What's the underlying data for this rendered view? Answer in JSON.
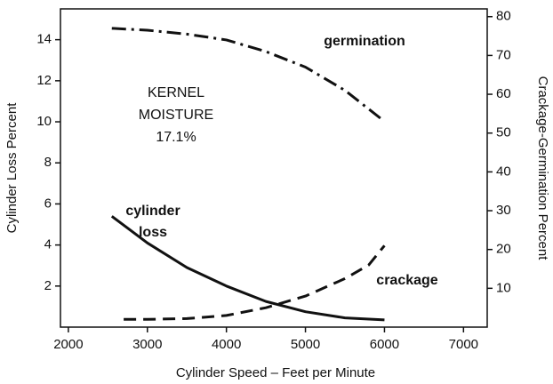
{
  "chart_data": {
    "type": "line",
    "xlabel": "Cylinder Speed  –  Feet per Minute",
    "ylabel": "Cylinder Loss Percent",
    "y2label": "Crackage-Germination Percent",
    "xlim": [
      1900,
      7300
    ],
    "xticks": [
      2000,
      3000,
      4000,
      5000,
      6000,
      7000
    ],
    "ylim": [
      0,
      15.5
    ],
    "yticks": [
      2,
      4,
      6,
      8,
      10,
      12,
      14
    ],
    "y2lim": [
      0,
      82
    ],
    "y2ticks": [
      10,
      20,
      30,
      40,
      50,
      60,
      70,
      80
    ],
    "grid": false,
    "series": [
      {
        "name": "cylinder loss",
        "color": "#111111",
        "style": "solid",
        "axis": "y",
        "x": [
          2550,
          3000,
          3500,
          4000,
          4500,
          5000,
          5500,
          6000
        ],
        "values": [
          5.4,
          4.1,
          2.9,
          2.0,
          1.25,
          0.75,
          0.45,
          0.35
        ]
      },
      {
        "name": "crackage",
        "color": "#111111",
        "style": "dashed",
        "axis": "y2",
        "x": [
          2700,
          3000,
          3500,
          4000,
          4500,
          5000,
          5500,
          5800,
          6000
        ],
        "values": [
          2,
          2,
          2.2,
          3,
          5,
          8,
          12.5,
          16,
          21
        ]
      },
      {
        "name": "germination",
        "color": "#111111",
        "style": "dashdot",
        "axis": "y2",
        "x": [
          2550,
          3000,
          3500,
          4000,
          4500,
          5000,
          5500,
          6000
        ],
        "values": [
          77,
          76.5,
          75.5,
          74,
          71,
          67,
          61,
          53
        ]
      }
    ],
    "annotations": [
      {
        "text": "germination"
      },
      {
        "text": "KERNEL"
      },
      {
        "text": "MOISTURE"
      },
      {
        "text": "17.1%"
      },
      {
        "text": "cylinder"
      },
      {
        "text": "loss"
      },
      {
        "text": "crackage"
      }
    ]
  }
}
